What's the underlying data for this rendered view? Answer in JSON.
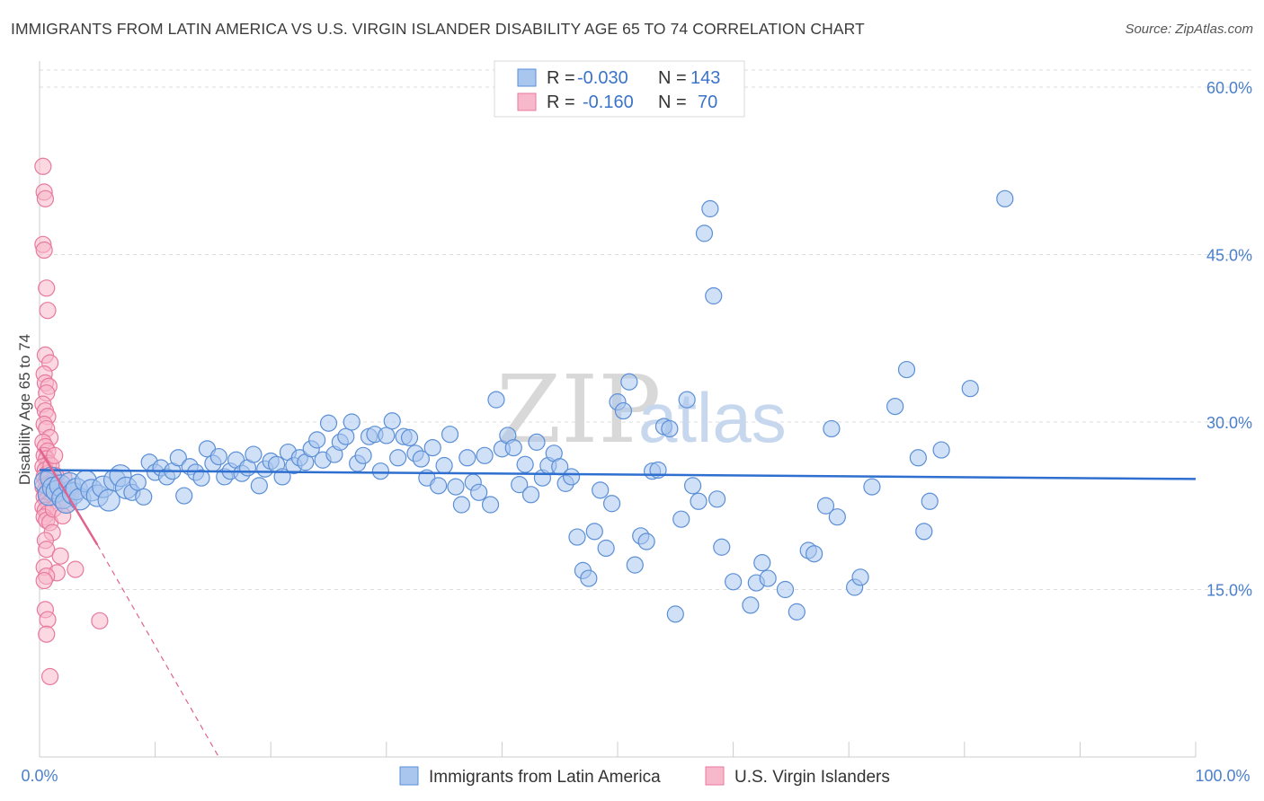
{
  "header": {
    "title": "IMMIGRANTS FROM LATIN AMERICA VS U.S. VIRGIN ISLANDER DISABILITY AGE 65 TO 74 CORRELATION CHART",
    "source": "Source: ZipAtlas.com"
  },
  "watermark": {
    "zip": "ZIP",
    "atlas": "atlas"
  },
  "legend": {
    "series1": {
      "r_label": "R =",
      "r_value": "-0.030",
      "n_label": "N =",
      "n_value": "143"
    },
    "series2": {
      "r_label": "R =",
      "r_value": "-0.160",
      "n_label": "N =",
      "n_value": "70"
    }
  },
  "colors": {
    "blue_fill": "#a9c6ee",
    "blue_stroke": "#5b8fd6",
    "blue_line": "#2f6fcf",
    "pink_fill": "#f7b8cb",
    "pink_stroke": "#e8799e",
    "pink_line": "#e0628f",
    "tick_text": "#4a7fcc",
    "grid": "#dddddd"
  },
  "chart_data": {
    "type": "scatter",
    "title": "IMMIGRANTS FROM LATIN AMERICA VS U.S. VIRGIN ISLANDER DISABILITY AGE 65 TO 74 CORRELATION CHART",
    "xlabel": "",
    "ylabel": "Disability Age 65 to 74",
    "xlim": [
      0,
      100
    ],
    "ylim": [
      0,
      60
    ],
    "x_tick_labels": [
      "0.0%",
      "100.0%"
    ],
    "y_ticks": [
      15,
      30,
      45,
      60
    ],
    "y_tick_labels": [
      "15.0%",
      "30.0%",
      "45.0%",
      "60.0%"
    ],
    "grid": "horizontal dashed",
    "legend_position": "top-center",
    "series": [
      {
        "name": "Immigrants from Latin America",
        "color": "#a9c6ee",
        "r": -0.03,
        "n": 143,
        "trend": {
          "x": [
            0,
            100
          ],
          "y": [
            25.7,
            24.9
          ]
        },
        "points": [
          [
            0.5,
            24.6
          ],
          [
            0.8,
            23.5
          ],
          [
            1.0,
            25.0
          ],
          [
            1.2,
            24.1
          ],
          [
            1.5,
            23.8
          ],
          [
            1.8,
            24.3
          ],
          [
            2.0,
            23.2
          ],
          [
            2.3,
            22.8
          ],
          [
            2.6,
            24.5
          ],
          [
            2.9,
            23.6
          ],
          [
            3.2,
            24.0
          ],
          [
            3.5,
            23.1
          ],
          [
            4.0,
            24.7
          ],
          [
            4.5,
            23.9
          ],
          [
            5.0,
            23.4
          ],
          [
            5.5,
            24.2
          ],
          [
            6.0,
            23.0
          ],
          [
            6.5,
            24.8
          ],
          [
            7.0,
            25.2
          ],
          [
            7.5,
            24.1
          ],
          [
            8.0,
            23.7
          ],
          [
            8.5,
            24.6
          ],
          [
            9.0,
            23.3
          ],
          [
            9.5,
            26.4
          ],
          [
            10.0,
            25.5
          ],
          [
            10.5,
            25.9
          ],
          [
            11.0,
            25.1
          ],
          [
            11.5,
            25.6
          ],
          [
            12.0,
            26.8
          ],
          [
            12.5,
            23.4
          ],
          [
            13.0,
            26.0
          ],
          [
            13.5,
            25.5
          ],
          [
            14.0,
            25.0
          ],
          [
            14.5,
            27.6
          ],
          [
            15.0,
            26.3
          ],
          [
            15.5,
            26.9
          ],
          [
            16.0,
            25.1
          ],
          [
            16.5,
            25.6
          ],
          [
            17.0,
            26.6
          ],
          [
            17.5,
            25.4
          ],
          [
            18.0,
            25.9
          ],
          [
            18.5,
            27.1
          ],
          [
            19.0,
            24.3
          ],
          [
            19.5,
            25.8
          ],
          [
            20.0,
            26.5
          ],
          [
            20.5,
            26.2
          ],
          [
            21.0,
            25.1
          ],
          [
            21.5,
            27.3
          ],
          [
            22.0,
            26.1
          ],
          [
            22.5,
            26.8
          ],
          [
            23.0,
            26.4
          ],
          [
            23.5,
            27.6
          ],
          [
            24.0,
            28.4
          ],
          [
            24.5,
            26.6
          ],
          [
            25.0,
            29.9
          ],
          [
            25.5,
            27.1
          ],
          [
            26.0,
            28.2
          ],
          [
            26.5,
            28.7
          ],
          [
            27.0,
            30.0
          ],
          [
            27.5,
            26.3
          ],
          [
            28.0,
            27.0
          ],
          [
            28.5,
            28.7
          ],
          [
            29.0,
            28.9
          ],
          [
            29.5,
            25.6
          ],
          [
            30.0,
            28.8
          ],
          [
            30.5,
            30.1
          ],
          [
            31.0,
            26.8
          ],
          [
            31.5,
            28.7
          ],
          [
            32.0,
            28.6
          ],
          [
            32.5,
            27.2
          ],
          [
            33.0,
            26.7
          ],
          [
            33.5,
            25.0
          ],
          [
            34.0,
            27.7
          ],
          [
            34.5,
            24.3
          ],
          [
            35.0,
            26.1
          ],
          [
            35.5,
            28.9
          ],
          [
            36.0,
            24.2
          ],
          [
            36.5,
            22.6
          ],
          [
            37.0,
            26.8
          ],
          [
            37.5,
            24.6
          ],
          [
            38.0,
            23.7
          ],
          [
            38.5,
            27.0
          ],
          [
            39.0,
            22.6
          ],
          [
            39.5,
            32.0
          ],
          [
            40.0,
            27.6
          ],
          [
            40.5,
            28.8
          ],
          [
            41.0,
            27.7
          ],
          [
            41.5,
            24.4
          ],
          [
            42.0,
            26.2
          ],
          [
            42.5,
            23.5
          ],
          [
            43.0,
            28.2
          ],
          [
            43.5,
            25.0
          ],
          [
            44.0,
            26.1
          ],
          [
            44.5,
            27.2
          ],
          [
            45.0,
            26.0
          ],
          [
            45.5,
            24.5
          ],
          [
            46.0,
            25.1
          ],
          [
            46.5,
            19.7
          ],
          [
            47.0,
            16.7
          ],
          [
            47.5,
            16.0
          ],
          [
            48.0,
            20.2
          ],
          [
            48.5,
            23.9
          ],
          [
            49.0,
            18.7
          ],
          [
            49.5,
            22.7
          ],
          [
            50.0,
            31.8
          ],
          [
            50.5,
            31.0
          ],
          [
            51.0,
            33.6
          ],
          [
            51.5,
            17.2
          ],
          [
            52.0,
            19.8
          ],
          [
            52.5,
            19.3
          ],
          [
            53.0,
            25.6
          ],
          [
            53.5,
            25.7
          ],
          [
            54.0,
            29.6
          ],
          [
            54.5,
            29.4
          ],
          [
            55.0,
            12.8
          ],
          [
            55.5,
            21.3
          ],
          [
            56.0,
            32.0
          ],
          [
            56.5,
            24.3
          ],
          [
            57.0,
            22.9
          ],
          [
            57.5,
            46.9
          ],
          [
            58.0,
            49.1
          ],
          [
            58.3,
            41.3
          ],
          [
            58.6,
            23.1
          ],
          [
            59.0,
            18.8
          ],
          [
            60.0,
            15.7
          ],
          [
            61.5,
            13.6
          ],
          [
            62.0,
            15.6
          ],
          [
            62.5,
            17.4
          ],
          [
            63.0,
            16.0
          ],
          [
            64.5,
            15.0
          ],
          [
            65.5,
            13.0
          ],
          [
            66.5,
            18.5
          ],
          [
            67.0,
            18.2
          ],
          [
            68.0,
            22.5
          ],
          [
            68.5,
            29.4
          ],
          [
            69.0,
            21.5
          ],
          [
            70.5,
            15.2
          ],
          [
            71.0,
            16.1
          ],
          [
            72.0,
            24.2
          ],
          [
            74.0,
            31.4
          ],
          [
            75.0,
            34.7
          ],
          [
            76.0,
            26.8
          ],
          [
            76.5,
            20.2
          ],
          [
            77.0,
            22.9
          ],
          [
            78.0,
            27.5
          ],
          [
            80.5,
            33.0
          ],
          [
            83.5,
            50.0
          ]
        ]
      },
      {
        "name": "U.S. Virgin Islanders",
        "color": "#f7b8cb",
        "r": -0.16,
        "n": 70,
        "trend": {
          "x": [
            0,
            5
          ],
          "y": [
            27.6,
            19.0
          ]
        },
        "trend_dashed": {
          "x": [
            5,
            15.5
          ],
          "y": [
            19.0,
            0
          ]
        },
        "points": [
          [
            0.3,
            52.9
          ],
          [
            0.4,
            50.6
          ],
          [
            0.5,
            50.0
          ],
          [
            0.3,
            45.9
          ],
          [
            0.4,
            45.4
          ],
          [
            0.6,
            42.0
          ],
          [
            0.7,
            40.0
          ],
          [
            0.5,
            36.0
          ],
          [
            0.9,
            35.3
          ],
          [
            0.4,
            34.3
          ],
          [
            0.5,
            33.5
          ],
          [
            0.8,
            33.2
          ],
          [
            0.6,
            32.6
          ],
          [
            0.3,
            31.6
          ],
          [
            0.5,
            31.0
          ],
          [
            0.7,
            30.5
          ],
          [
            0.4,
            29.8
          ],
          [
            0.6,
            29.4
          ],
          [
            0.9,
            28.6
          ],
          [
            0.3,
            28.2
          ],
          [
            0.5,
            27.8
          ],
          [
            0.7,
            27.4
          ],
          [
            0.4,
            27.0
          ],
          [
            0.6,
            26.7
          ],
          [
            0.8,
            26.3
          ],
          [
            0.3,
            26.0
          ],
          [
            0.5,
            25.7
          ],
          [
            0.7,
            25.4
          ],
          [
            0.4,
            25.1
          ],
          [
            0.6,
            24.8
          ],
          [
            0.8,
            24.5
          ],
          [
            0.3,
            24.2
          ],
          [
            0.5,
            23.9
          ],
          [
            0.7,
            23.6
          ],
          [
            0.4,
            23.3
          ],
          [
            0.6,
            23.0
          ],
          [
            0.8,
            22.7
          ],
          [
            0.3,
            22.4
          ],
          [
            0.5,
            22.1
          ],
          [
            0.7,
            21.8
          ],
          [
            0.4,
            21.5
          ],
          [
            0.6,
            21.2
          ],
          [
            1.2,
            23.8
          ],
          [
            1.5,
            24.6
          ],
          [
            1.8,
            23.1
          ],
          [
            2.1,
            25.0
          ],
          [
            2.4,
            22.6
          ],
          [
            2.7,
            23.5
          ],
          [
            1.0,
            26.1
          ],
          [
            1.3,
            27.0
          ],
          [
            0.9,
            21.0
          ],
          [
            1.1,
            20.1
          ],
          [
            0.5,
            19.4
          ],
          [
            0.6,
            18.6
          ],
          [
            1.8,
            18.0
          ],
          [
            0.4,
            17.0
          ],
          [
            1.5,
            16.5
          ],
          [
            0.6,
            16.2
          ],
          [
            0.4,
            15.8
          ],
          [
            3.1,
            16.8
          ],
          [
            0.5,
            13.2
          ],
          [
            0.7,
            12.3
          ],
          [
            5.2,
            12.2
          ],
          [
            0.6,
            11.0
          ],
          [
            0.9,
            7.2
          ],
          [
            1.2,
            22.2
          ],
          [
            2.0,
            21.6
          ],
          [
            0.9,
            24.4
          ],
          [
            1.4,
            25.2
          ],
          [
            2.6,
            24.0
          ]
        ]
      }
    ]
  },
  "axes": {
    "ylabel": "Disability Age 65 to 74",
    "x_left": "0.0%",
    "x_right": "100.0%",
    "y_ticks": [
      "15.0%",
      "30.0%",
      "45.0%",
      "60.0%"
    ]
  },
  "bottom_legend": {
    "item1": "Immigrants from Latin America",
    "item2": "U.S. Virgin Islanders"
  }
}
